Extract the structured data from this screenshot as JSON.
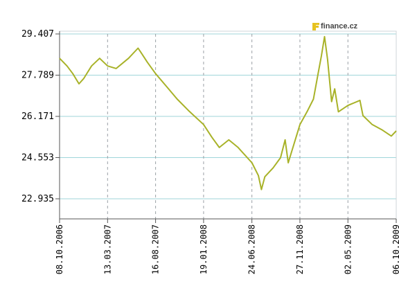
{
  "brand": {
    "label": "finance.cz",
    "icon": "finance-logo-icon",
    "icon_color": "#e6c220"
  },
  "colors": {
    "line": "#a8b228",
    "grid_h": "#9fd6da",
    "grid_v": "#9aa0a6",
    "axis": "#555555",
    "frame": "#cfd6d8"
  },
  "chart_data": {
    "type": "line",
    "title": "",
    "xlabel": "",
    "ylabel": "",
    "grid": true,
    "legend": "none",
    "ylim": [
      22.935,
      29.407
    ],
    "yticks": [
      29.407,
      27.789,
      26.171,
      24.553,
      22.935
    ],
    "ytick_labels": [
      "29.407",
      "27.789",
      "26.171",
      "24.553",
      "22.935"
    ],
    "xticks": [
      "08.10.2006",
      "13.03.2007",
      "16.08.2007",
      "19.01.2008",
      "24.06.2008",
      "27.11.2008",
      "02.05.2009",
      "06.10.2009"
    ],
    "series": [
      {
        "values": [
          [
            "08.10.2006",
            28.45
          ],
          [
            "01.11.2006",
            28.15
          ],
          [
            "20.11.2006",
            27.85
          ],
          [
            "10.12.2006",
            27.45
          ],
          [
            "25.12.2006",
            27.65
          ],
          [
            "20.01.2007",
            28.15
          ],
          [
            "15.02.2007",
            28.45
          ],
          [
            "13.03.2007",
            28.15
          ],
          [
            "10.04.2007",
            28.05
          ],
          [
            "20.05.2007",
            28.45
          ],
          [
            "20.06.2007",
            28.85
          ],
          [
            "01.07.2007",
            28.65
          ],
          [
            "20.07.2007",
            28.3
          ],
          [
            "16.08.2007",
            27.85
          ],
          [
            "20.09.2007",
            27.35
          ],
          [
            "25.10.2007",
            26.85
          ],
          [
            "01.12.2007",
            26.4
          ],
          [
            "19.01.2008",
            25.85
          ],
          [
            "15.02.2008",
            25.35
          ],
          [
            "10.03.2008",
            24.95
          ],
          [
            "10.04.2008",
            25.25
          ],
          [
            "10.05.2008",
            24.95
          ],
          [
            "24.06.2008",
            24.35
          ],
          [
            "15.07.2008",
            23.85
          ],
          [
            "25.07.2008",
            23.3
          ],
          [
            "05.08.2008",
            23.8
          ],
          [
            "01.09.2008",
            24.15
          ],
          [
            "25.09.2008",
            24.55
          ],
          [
            "10.10.2008",
            25.25
          ],
          [
            "20.10.2008",
            24.35
          ],
          [
            "27.11.2008",
            25.85
          ],
          [
            "20.12.2008",
            26.35
          ],
          [
            "10.01.2009",
            26.85
          ],
          [
            "25.01.2009",
            27.85
          ],
          [
            "05.02.2009",
            28.55
          ],
          [
            "15.02.2009",
            29.3
          ],
          [
            "25.02.2009",
            28.4
          ],
          [
            "10.03.2009",
            26.75
          ],
          [
            "20.03.2009",
            27.25
          ],
          [
            "01.04.2009",
            26.35
          ],
          [
            "02.05.2009",
            26.6
          ],
          [
            "10.06.2009",
            26.8
          ],
          [
            "20.06.2009",
            26.2
          ],
          [
            "20.07.2009",
            25.85
          ],
          [
            "20.08.2009",
            25.65
          ],
          [
            "20.09.2009",
            25.4
          ],
          [
            "06.10.2009",
            25.6
          ]
        ]
      }
    ]
  }
}
